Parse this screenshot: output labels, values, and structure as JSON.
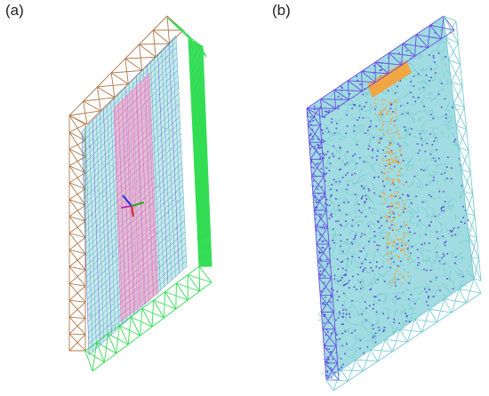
{
  "panels": [
    {
      "label": "(a)",
      "colors": {
        "back_frame": "#b07848",
        "front_frame": "#33dd55",
        "side_mesh": "#2aa8b8",
        "side_mesh_alt": "#3355cc",
        "center_mesh": "#ff99cc",
        "axis_x": "#dd2222",
        "axis_y": "#22aa22",
        "axis_z": "#2233dd"
      }
    },
    {
      "label": "(b)",
      "colors": {
        "frame": "#6a4ee6",
        "mesh_fill": "#8fd6dc",
        "mesh_lines": "#6fc7cf",
        "dots": "#5b45d8",
        "highlight": "#f4a23a"
      }
    }
  ]
}
